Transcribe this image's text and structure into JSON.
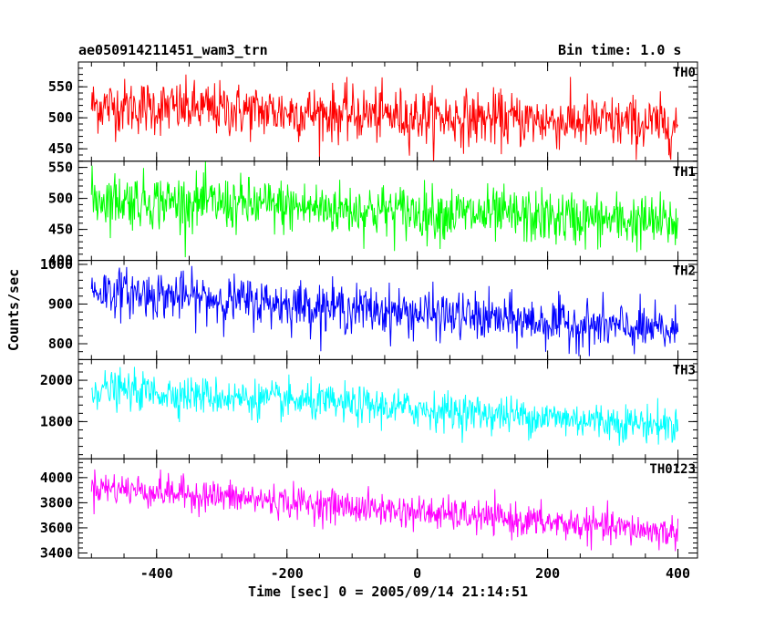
{
  "header": {
    "title": "ae050914211451_wam3_trn",
    "bin_time": "Bin time: 1.0 s"
  },
  "chart_data": {
    "type": "line",
    "title": "ae050914211451_wam3_trn",
    "subtitle": "Bin time: 1.0 s",
    "xlabel": "Time [sec] 0 = 2005/09/14 21:14:51",
    "ylabel": "Counts/sec",
    "xlim": [
      -520,
      430
    ],
    "xticks": [
      -400,
      -200,
      0,
      200,
      400
    ],
    "x_start": -500,
    "x_end": 400,
    "x_step": 1.0,
    "panels": [
      {
        "name": "TH0",
        "color": "#ff0000",
        "ylim": [
          430,
          590
        ],
        "yticks": [
          450,
          500,
          550
        ],
        "trend_start": 520,
        "trend_end": 488,
        "noise_sd": 22
      },
      {
        "name": "TH1",
        "color": "#00ff00",
        "ylim": [
          400,
          560
        ],
        "yticks": [
          400,
          450,
          500,
          550
        ],
        "trend_start": 500,
        "trend_end": 460,
        "noise_sd": 22
      },
      {
        "name": "TH2",
        "color": "#0000ff",
        "ylim": [
          760,
          1010
        ],
        "yticks": [
          800,
          900,
          1000
        ],
        "trend_start": 935,
        "trend_end": 830,
        "noise_sd": 30
      },
      {
        "name": "TH3",
        "color": "#00ffff",
        "ylim": [
          1620,
          2100
        ],
        "yticks": [
          1800,
          2000
        ],
        "trend_start": 1960,
        "trend_end": 1780,
        "noise_sd": 45
      },
      {
        "name": "TH0123",
        "color": "#ff00ff",
        "ylim": [
          3360,
          4150
        ],
        "yticks": [
          3400,
          3600,
          3800,
          4000
        ],
        "trend_start": 3930,
        "trend_end": 3560,
        "noise_sd": 65
      }
    ]
  }
}
